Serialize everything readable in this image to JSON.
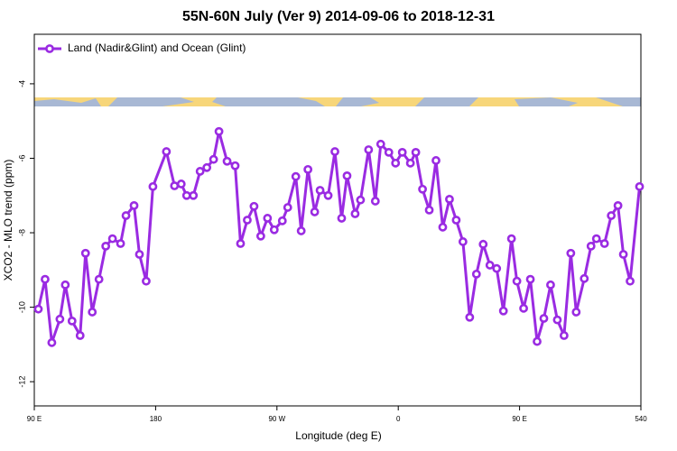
{
  "chart_data": {
    "type": "line",
    "title": "55N-60N July (Ver 9)   2014-09-06 to 2018-12-31",
    "xlabel": "Longitude (deg E)",
    "ylabel": "XCO2 - MLO trend (ppm)",
    "legend_loc": "upper left",
    "xlim": [
      90,
      540
    ],
    "xticks": [
      {
        "value": 90,
        "label": "90 E"
      },
      180,
      {
        "value": 270,
        "label": "90 W"
      },
      {
        "value": 360,
        "label": "0"
      },
      {
        "value": 450,
        "label": "90 E"
      },
      540
    ],
    "ylim": [
      -12.65,
      -2.67
    ],
    "yticks": [
      -12,
      -10,
      -8,
      -6,
      -4
    ],
    "x": [
      93,
      98,
      103,
      109,
      113,
      118,
      124,
      128,
      133,
      138,
      143,
      148,
      154,
      158,
      164,
      168,
      173,
      178,
      188,
      194,
      199,
      203,
      208,
      213,
      218,
      223,
      227,
      233,
      239,
      243,
      248,
      253,
      258,
      263,
      268,
      274,
      278,
      284,
      288,
      293,
      298,
      302,
      308,
      313,
      318,
      322,
      328,
      332,
      338,
      343,
      347,
      353,
      358,
      363,
      369,
      373,
      378,
      383,
      388,
      393,
      398,
      403,
      408,
      413,
      418,
      423,
      428,
      433,
      438,
      444,
      448,
      453,
      458,
      463,
      468,
      473,
      478,
      483,
      488,
      492,
      498,
      503,
      507,
      513,
      518,
      523,
      527,
      532,
      539
    ],
    "series": [
      {
        "name": "Land (Nadir&Glint) and Ocean (Glint)",
        "color": "#9a2be2",
        "values": [
          -10.05,
          -9.25,
          -10.95,
          -10.32,
          -9.4,
          -10.37,
          -10.76,
          -8.55,
          -10.13,
          -9.25,
          -8.36,
          -8.16,
          -8.29,
          -7.54,
          -7.27,
          -8.58,
          -9.3,
          -6.76,
          -5.82,
          -6.74,
          -6.69,
          -7.0,
          -7.0,
          -6.35,
          -6.25,
          -6.03,
          -5.28,
          -6.08,
          -6.2,
          -8.29,
          -7.66,
          -7.29,
          -8.09,
          -7.61,
          -7.92,
          -7.68,
          -7.32,
          -6.49,
          -7.95,
          -6.3,
          -7.44,
          -6.86,
          -7.0,
          -5.82,
          -7.61,
          -6.47,
          -7.49,
          -7.12,
          -5.77,
          -7.15,
          -5.62,
          -5.84,
          -6.13,
          -5.84,
          -6.13,
          -5.84,
          -6.83,
          -7.39,
          -6.06,
          -7.85,
          -7.1,
          -7.66,
          -8.24,
          -10.27,
          -9.11,
          -8.31,
          -8.87,
          -8.96,
          -10.1,
          -8.16,
          -9.3,
          -10.03,
          -9.25,
          -10.92,
          -10.3,
          -9.4,
          -10.34,
          -10.76,
          -8.55,
          -10.13,
          -9.23,
          -8.36,
          -8.16,
          -8.29,
          -7.54,
          -7.27,
          -8.58,
          -9.3,
          -6.76
        ]
      }
    ]
  }
}
